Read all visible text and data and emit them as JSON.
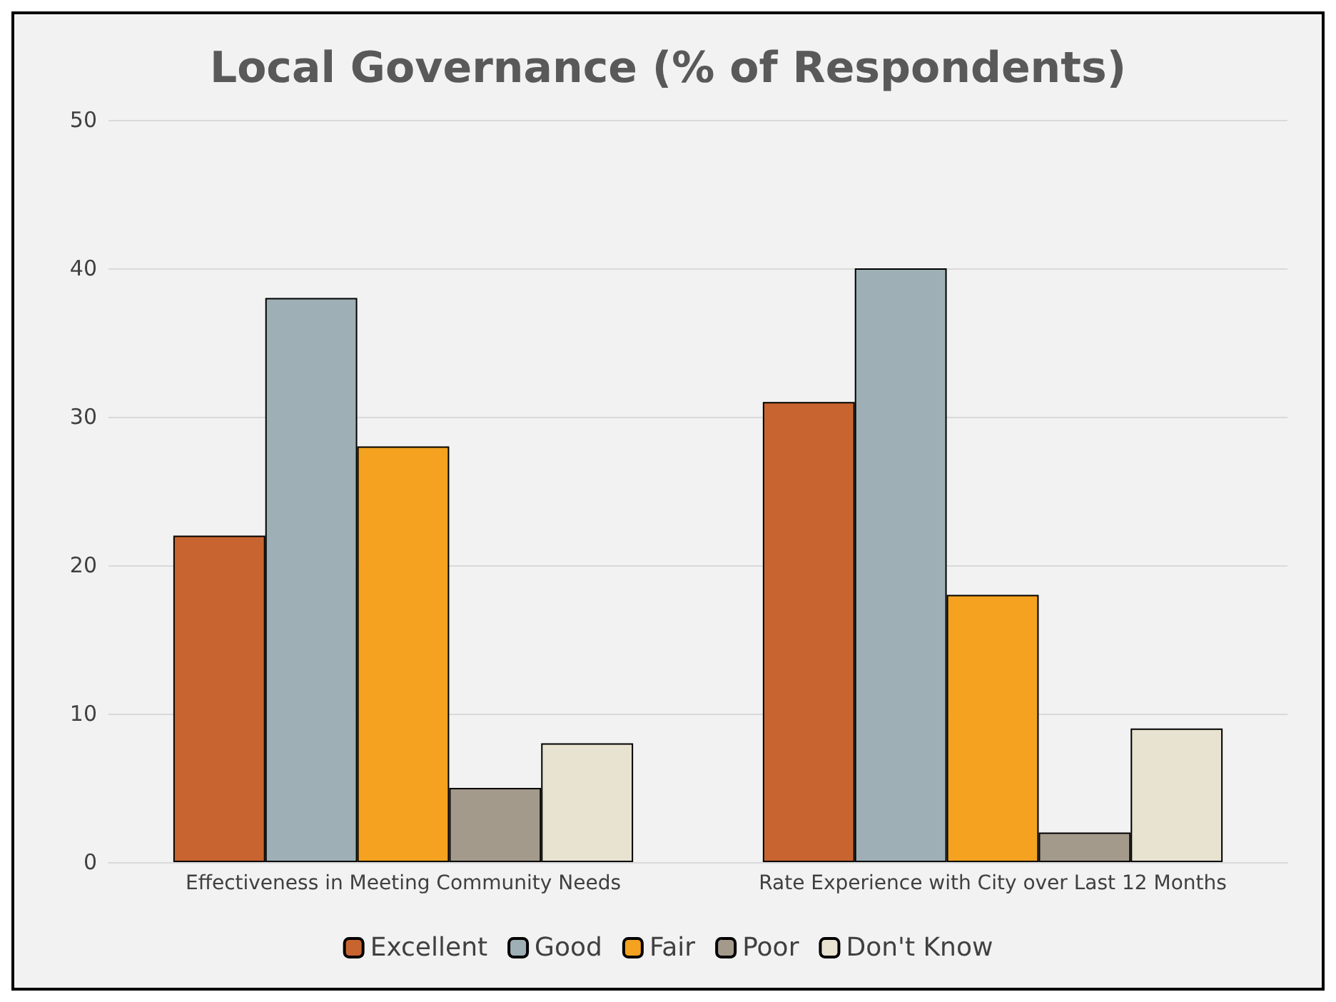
{
  "chart_data": {
    "type": "bar",
    "title": "Local Governance (% of Respondents)",
    "categories": [
      "Effectiveness in Meeting Community Needs",
      "Rate Experience with City over Last 12 Months"
    ],
    "series": [
      {
        "name": "Excellent",
        "color": "#c8642f",
        "values": [
          22,
          31
        ]
      },
      {
        "name": "Good",
        "color": "#9eb0b5",
        "values": [
          38,
          40
        ]
      },
      {
        "name": "Fair",
        "color": "#f4a21f",
        "values": [
          28,
          18
        ]
      },
      {
        "name": "Poor",
        "color": "#a39a8c",
        "values": [
          5,
          2
        ]
      },
      {
        "name": "Don't Know",
        "color": "#e8e2d0",
        "values": [
          8,
          9
        ]
      }
    ],
    "ylim": [
      0,
      50
    ],
    "yticks": [
      0,
      10,
      20,
      30,
      40,
      50
    ],
    "grid": "y",
    "legend": "bottom"
  }
}
